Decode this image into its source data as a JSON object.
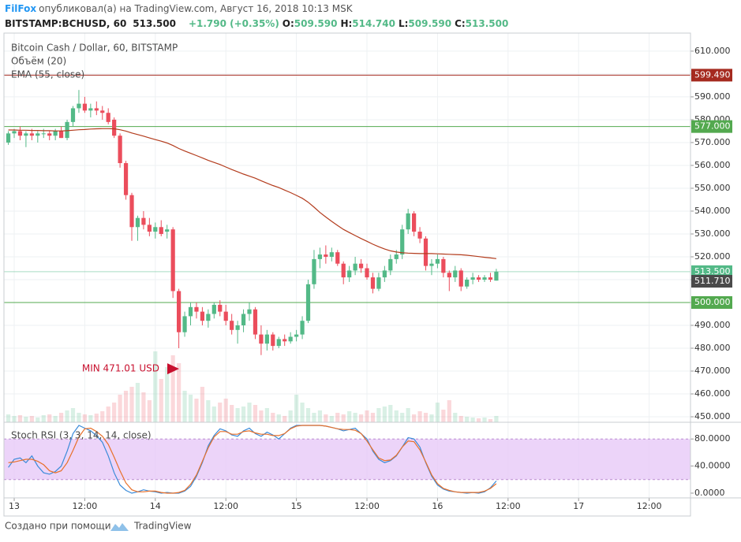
{
  "header": {
    "author": "FilFox",
    "published": "опубликовал(а) на TradingView.com, Август 16, 2018 10:13 MSK",
    "symbol": "BITSTAMP:BCHUSD, 60",
    "price": "513.500",
    "change": "+1.790 (+0.35%)",
    "ohlc": [
      {
        "label": "O:",
        "value": "509.590"
      },
      {
        "label": "H:",
        "value": "514.740"
      },
      {
        "label": "L:",
        "value": "509.590"
      },
      {
        "label": "C:",
        "value": "513.500"
      }
    ]
  },
  "footer": {
    "text": "Создано при помощи",
    "brand": "TradingView"
  },
  "chart_data": [
    {
      "type": "candlestick",
      "title": "Bitcoin Cash / Dollar, 60, BITSTAMP",
      "up_color": "#53b987",
      "down_color": "#eb4d5c",
      "x": [
        -1,
        0,
        1,
        2,
        3,
        4,
        5,
        6,
        7,
        8,
        9,
        10,
        11,
        12,
        13,
        14,
        15,
        16,
        17,
        18,
        19,
        20,
        21,
        22,
        23,
        24,
        25,
        26,
        27,
        28,
        29,
        30,
        31,
        32,
        33,
        34,
        35,
        36,
        37,
        38,
        39,
        40,
        41,
        42,
        43,
        44,
        45,
        46,
        47,
        48,
        49,
        50,
        51,
        52,
        53,
        54,
        55,
        56,
        57,
        58,
        59,
        60,
        61,
        62,
        63,
        64,
        65,
        66,
        67,
        68,
        69,
        70,
        71,
        72,
        73,
        74,
        75,
        76,
        77,
        78,
        79,
        80,
        81,
        82
      ],
      "xlim": [
        -1.745,
        115.03
      ],
      "xticks": [
        {
          "value": 0,
          "label": "13"
        },
        {
          "value": 12,
          "label": "12:00"
        },
        {
          "value": 24,
          "label": "14"
        },
        {
          "value": 36,
          "label": "12:00"
        },
        {
          "value": 48,
          "label": "15"
        },
        {
          "value": 60,
          "label": "12:00"
        },
        {
          "value": 72,
          "label": "16"
        },
        {
          "value": 84,
          "label": "12:00"
        },
        {
          "value": 96,
          "label": "17"
        },
        {
          "value": 108,
          "label": "12:00"
        }
      ],
      "ylim": [
        447.6,
        617.9
      ],
      "yticks": [
        {
          "value": 450,
          "label": "450.000"
        },
        {
          "value": 460,
          "label": "460.000"
        },
        {
          "value": 470,
          "label": "470.000"
        },
        {
          "value": 480,
          "label": "480.000"
        },
        {
          "value": 490,
          "label": "490.000"
        },
        {
          "value": 500,
          "label": "500.000"
        },
        {
          "value": 510,
          "label": "510.000"
        },
        {
          "value": 520,
          "label": "520.000"
        },
        {
          "value": 530,
          "label": "530.000"
        },
        {
          "value": 540,
          "label": "540.000"
        },
        {
          "value": 550,
          "label": "550.000"
        },
        {
          "value": 560,
          "label": "560.000"
        },
        {
          "value": 570,
          "label": "570.000"
        },
        {
          "value": 580,
          "label": "580.000"
        },
        {
          "value": 590,
          "label": "590.000"
        },
        {
          "value": 600,
          "label": "600.000"
        },
        {
          "value": 610,
          "label": "610.000"
        }
      ],
      "grid": true,
      "ohlc": [
        [
          570,
          575,
          569,
          574
        ],
        [
          574,
          576,
          572,
          575
        ],
        [
          575,
          577,
          571,
          573
        ],
        [
          573,
          575,
          568,
          574
        ],
        [
          574,
          576,
          571,
          573
        ],
        [
          573,
          575,
          570,
          574
        ],
        [
          574,
          576,
          572,
          574
        ],
        [
          574,
          575,
          571,
          573
        ],
        [
          573,
          576,
          571,
          575
        ],
        [
          575,
          577,
          572,
          572
        ],
        [
          572,
          580,
          571,
          579
        ],
        [
          579,
          586,
          577,
          585
        ],
        [
          585,
          593,
          583,
          587
        ],
        [
          587,
          590,
          583,
          584
        ],
        [
          584,
          587,
          581,
          585
        ],
        [
          585,
          588,
          582,
          584
        ],
        [
          584,
          586,
          580,
          583
        ],
        [
          583,
          585,
          578,
          579
        ],
        [
          580,
          581,
          572,
          573
        ],
        [
          573,
          574,
          559,
          561
        ],
        [
          561,
          562,
          545,
          547
        ],
        [
          547,
          548,
          527,
          533
        ],
        [
          533,
          538,
          527,
          537
        ],
        [
          537,
          540,
          532,
          534
        ],
        [
          534,
          537,
          529,
          531
        ],
        [
          531,
          535,
          528,
          533
        ],
        [
          533,
          536,
          529,
          530
        ],
        [
          531,
          534,
          528,
          532
        ],
        [
          532,
          533,
          502,
          505
        ],
        [
          505,
          506,
          480,
          487
        ],
        [
          487,
          496,
          485,
          494
        ],
        [
          494,
          500,
          490,
          498
        ],
        [
          498,
          500,
          493,
          496
        ],
        [
          496,
          498,
          490,
          492
        ],
        [
          492,
          497,
          489,
          495
        ],
        [
          495,
          500,
          493,
          499
        ],
        [
          499,
          501,
          494,
          496
        ],
        [
          496,
          499,
          490,
          492
        ],
        [
          492,
          495,
          486,
          488
        ],
        [
          488,
          492,
          482,
          490
        ],
        [
          490,
          497,
          487,
          495
        ],
        [
          495,
          500,
          492,
          497
        ],
        [
          497,
          498,
          484,
          486
        ],
        [
          486,
          490,
          477,
          482
        ],
        [
          482,
          488,
          479,
          486
        ],
        [
          486,
          487,
          479,
          481
        ],
        [
          481,
          485,
          480,
          484
        ],
        [
          484,
          486,
          481,
          483
        ],
        [
          483,
          487,
          482,
          485
        ],
        [
          485,
          488,
          483,
          486
        ],
        [
          486,
          494,
          484,
          492
        ],
        [
          492,
          510,
          491,
          508
        ],
        [
          508,
          523,
          506,
          519
        ],
        [
          519,
          524,
          515,
          521
        ],
        [
          521,
          525,
          517,
          520
        ],
        [
          520,
          524,
          518,
          522
        ],
        [
          522,
          523,
          516,
          517
        ],
        [
          517,
          518,
          508,
          511
        ],
        [
          511,
          516,
          509,
          514
        ],
        [
          514,
          520,
          512,
          517
        ],
        [
          517,
          519,
          513,
          515
        ],
        [
          515,
          517,
          510,
          511
        ],
        [
          511,
          513,
          504,
          506
        ],
        [
          506,
          513,
          505,
          511
        ],
        [
          511,
          516,
          509,
          514
        ],
        [
          514,
          521,
          512,
          519
        ],
        [
          519,
          523,
          517,
          521
        ],
        [
          521,
          534,
          519,
          532
        ],
        [
          532,
          541,
          530,
          539
        ],
        [
          539,
          540,
          529,
          531
        ],
        [
          531,
          533,
          526,
          528
        ],
        [
          528,
          529,
          514,
          516
        ],
        [
          516,
          519,
          512,
          517
        ],
        [
          517,
          521,
          515,
          519
        ],
        [
          519,
          520,
          511,
          513
        ],
        [
          513,
          514,
          505,
          511
        ],
        [
          511,
          516,
          509,
          514
        ],
        [
          514,
          515,
          505,
          507
        ],
        [
          507,
          511,
          506,
          510
        ],
        [
          510,
          513,
          508,
          511
        ],
        [
          511,
          512,
          509,
          510
        ],
        [
          510,
          512,
          509,
          511
        ],
        [
          511,
          513,
          509,
          510
        ],
        [
          509.59,
          514.74,
          509.59,
          513.5
        ]
      ],
      "volume": {
        "name": "Объём (20)",
        "values": [
          10,
          8,
          9,
          7,
          8,
          6,
          9,
          10,
          8,
          12,
          15,
          18,
          12,
          10,
          9,
          11,
          14,
          20,
          25,
          35,
          40,
          45,
          50,
          38,
          28,
          90,
          55,
          70,
          85,
          75,
          40,
          35,
          30,
          45,
          28,
          20,
          25,
          30,
          22,
          18,
          20,
          25,
          22,
          15,
          18,
          12,
          10,
          8,
          15,
          35,
          25,
          18,
          12,
          15,
          10,
          8,
          12,
          10,
          14,
          12,
          10,
          15,
          12,
          18,
          20,
          22,
          15,
          12,
          18,
          10,
          14,
          12,
          10,
          25,
          16,
          28,
          12,
          8,
          7,
          6,
          5,
          6,
          4,
          8
        ]
      },
      "ema": {
        "name": "EMA (55, close)",
        "color": "#b33c1d",
        "values": [
          575.5,
          575.5,
          575.4,
          575.4,
          575.3,
          575.3,
          575.2,
          575.2,
          575.1,
          575.1,
          575.2,
          575.4,
          575.6,
          575.7,
          575.9,
          576.0,
          576.1,
          576.1,
          576.0,
          575.6,
          575.0,
          574.2,
          573.5,
          572.8,
          572.0,
          571.3,
          570.6,
          569.8,
          568.7,
          567.4,
          566.3,
          565.3,
          564.3,
          563.3,
          562.2,
          561.3,
          560.4,
          559.3,
          558.2,
          557.2,
          556.2,
          555.3,
          554.4,
          553.3,
          552.2,
          551.2,
          550.3,
          549.2,
          548.1,
          546.9,
          545.6,
          543.9,
          541.7,
          539.4,
          537.4,
          535.5,
          533.7,
          532.0,
          530.6,
          529.3,
          528.0,
          526.8,
          525.5,
          524.4,
          523.4,
          522.6,
          522.1,
          521.8,
          521.6,
          521.5,
          521.4,
          521.4,
          521.4,
          521.3,
          521.2,
          521.1,
          521.0,
          520.9,
          520.7,
          520.4,
          520.1,
          519.8,
          519.5,
          519.2
        ]
      },
      "levels": [
        {
          "value": 599.49,
          "label": "599.490",
          "color": "#a52a1f"
        },
        {
          "value": 577.0,
          "label": "577.000",
          "color": "#53a94f"
        },
        {
          "value": 500.0,
          "label": "500.000",
          "color": "#53a94f"
        }
      ],
      "last_price": {
        "value": 513.5,
        "label": "513.500",
        "color": "#53b987"
      },
      "marker": {
        "value": 511.71,
        "label": "511.710",
        "color": "#4a4a4a"
      },
      "annotation": {
        "text": "MIN 471.01 USD",
        "value": 471.01,
        "color": "#c8102e"
      }
    },
    {
      "type": "line",
      "title": "Stoch RSI (3, 3, 14, 14, close)",
      "ylim": [
        -7,
        104.7
      ],
      "yticks": [
        {
          "value": 0,
          "label": "0.0000"
        },
        {
          "value": 40,
          "label": "40.0000"
        },
        {
          "value": 80,
          "label": "80.0000"
        }
      ],
      "band": [
        20,
        80
      ],
      "band_color": "#e7c9f7",
      "series": [
        {
          "color": "#3a8bd9",
          "values": [
            38,
            50,
            52,
            45,
            55,
            40,
            30,
            28,
            32,
            40,
            62,
            88,
            100,
            96,
            92,
            85,
            75,
            55,
            30,
            12,
            4,
            0,
            2,
            5,
            3,
            2,
            0,
            1,
            0,
            0,
            3,
            10,
            25,
            45,
            70,
            85,
            95,
            92,
            86,
            84,
            92,
            96,
            88,
            84,
            90,
            86,
            80,
            88,
            96,
            100,
            100,
            100,
            100,
            100,
            99,
            97,
            95,
            92,
            94,
            96,
            88,
            80,
            62,
            50,
            45,
            48,
            55,
            68,
            82,
            80,
            68,
            45,
            25,
            12,
            6,
            3,
            2,
            1,
            0,
            1,
            0,
            2,
            8,
            18
          ]
        },
        {
          "color": "#e8702a",
          "values": [
            45,
            46,
            48,
            50,
            50,
            47,
            42,
            33,
            30,
            33,
            45,
            63,
            83,
            95,
            96,
            91,
            84,
            72,
            53,
            33,
            15,
            5,
            2,
            2,
            3,
            3,
            1,
            0,
            0,
            1,
            4,
            13,
            27,
            47,
            67,
            83,
            91,
            91,
            87,
            87,
            91,
            92,
            89,
            87,
            87,
            85,
            85,
            88,
            95,
            99,
            100,
            100,
            100,
            100,
            99,
            97,
            95,
            94,
            94,
            93,
            88,
            77,
            64,
            52,
            48,
            49,
            56,
            68,
            77,
            76,
            64,
            46,
            27,
            14,
            7,
            4,
            2,
            1,
            1,
            1,
            1,
            3,
            7,
            14
          ]
        }
      ]
    }
  ]
}
